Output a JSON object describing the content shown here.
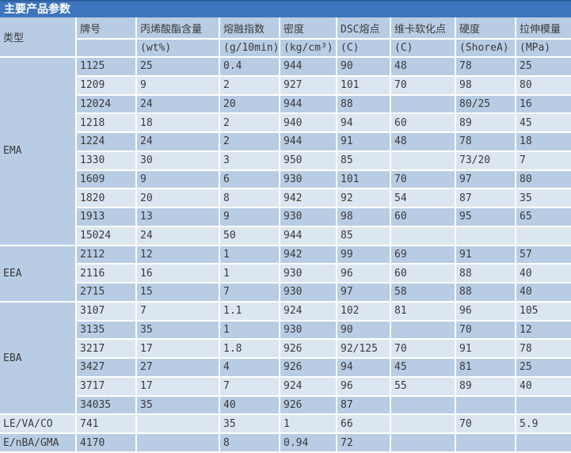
{
  "title": "主要产品参数",
  "colors": {
    "title_bar": "#3d74bd",
    "band_dark": "#b8cce4",
    "band_light": "#dce6f1",
    "gridline": "#ffffff",
    "text": "#3b3b3b",
    "title_text": "#ffffff"
  },
  "table": {
    "columns": [
      {
        "label": "类型",
        "unit": ""
      },
      {
        "label": "牌号",
        "unit": ""
      },
      {
        "label": "丙烯酸酯含量",
        "unit": "(wt%)"
      },
      {
        "label": "熔融指数",
        "unit": "(g/10min)"
      },
      {
        "label": "密度",
        "unit": "(kg/cm³)"
      },
      {
        "label": "DSC熔点",
        "unit": "(C)"
      },
      {
        "label": "维卡软化点",
        "unit": "(C)"
      },
      {
        "label": "硬度",
        "unit": "(ShoreA)"
      },
      {
        "label": "拉伸模量",
        "unit": "(MPa)"
      }
    ],
    "groups": [
      {
        "type": "EMA",
        "rows": [
          [
            "1125",
            "25",
            "0.4",
            "944",
            "90",
            "48",
            "78",
            "25"
          ],
          [
            "1209",
            "9",
            "2",
            "927",
            "101",
            "70",
            "98",
            "80"
          ],
          [
            "12024",
            "24",
            "20",
            "944",
            "88",
            "",
            "80/25",
            "16"
          ],
          [
            "1218",
            "18",
            "2",
            "940",
            "94",
            "60",
            "89",
            "45"
          ],
          [
            "1224",
            "24",
            "2",
            "944",
            "91",
            "48",
            "78",
            "18"
          ],
          [
            "1330",
            "30",
            "3",
            "950",
            "85",
            "",
            "73/20",
            "7"
          ],
          [
            "1609",
            "9",
            "6",
            "930",
            "101",
            "70",
            "97",
            "80"
          ],
          [
            "1820",
            "20",
            "8",
            "942",
            "92",
            "54",
            "87",
            "35"
          ],
          [
            "1913",
            "13",
            "9",
            "930",
            "98",
            "60",
            "95",
            "65"
          ],
          [
            "15024",
            "24",
            "50",
            "944",
            "85",
            "",
            "",
            ""
          ]
        ]
      },
      {
        "type": "EEA",
        "rows": [
          [
            "2112",
            "12",
            "1",
            "942",
            "99",
            "69",
            "91",
            "57"
          ],
          [
            "2116",
            "16",
            "1",
            "930",
            "96",
            "60",
            "88",
            "40"
          ],
          [
            "2715",
            "15",
            "7",
            "930",
            "97",
            "58",
            "88",
            "40"
          ]
        ]
      },
      {
        "type": "EBA",
        "rows": [
          [
            "3107",
            "7",
            "1.1",
            "924",
            "102",
            "81",
            "96",
            "105"
          ],
          [
            "3135",
            "35",
            "1",
            "930",
            "90",
            "",
            "70",
            "12"
          ],
          [
            "3217",
            "17",
            "1.8",
            "926",
            "92/125",
            "70",
            "91",
            "78"
          ],
          [
            "3427",
            "27",
            "4",
            "926",
            "94",
            "45",
            "81",
            "25"
          ],
          [
            "3717",
            "17",
            "7",
            "924",
            "96",
            "55",
            "89",
            "40"
          ],
          [
            "34035",
            "35",
            "40",
            "926",
            "87",
            "",
            "",
            ""
          ]
        ]
      },
      {
        "type": "LE/VA/CO",
        "rows": [
          [
            "741",
            "",
            "35",
            "1",
            "66",
            "",
            "70",
            "5.9"
          ]
        ]
      },
      {
        "type": "E/nBA/GMA",
        "rows": [
          [
            "4170",
            "",
            "8",
            "0.94",
            "72",
            "",
            "",
            ""
          ]
        ]
      }
    ]
  }
}
